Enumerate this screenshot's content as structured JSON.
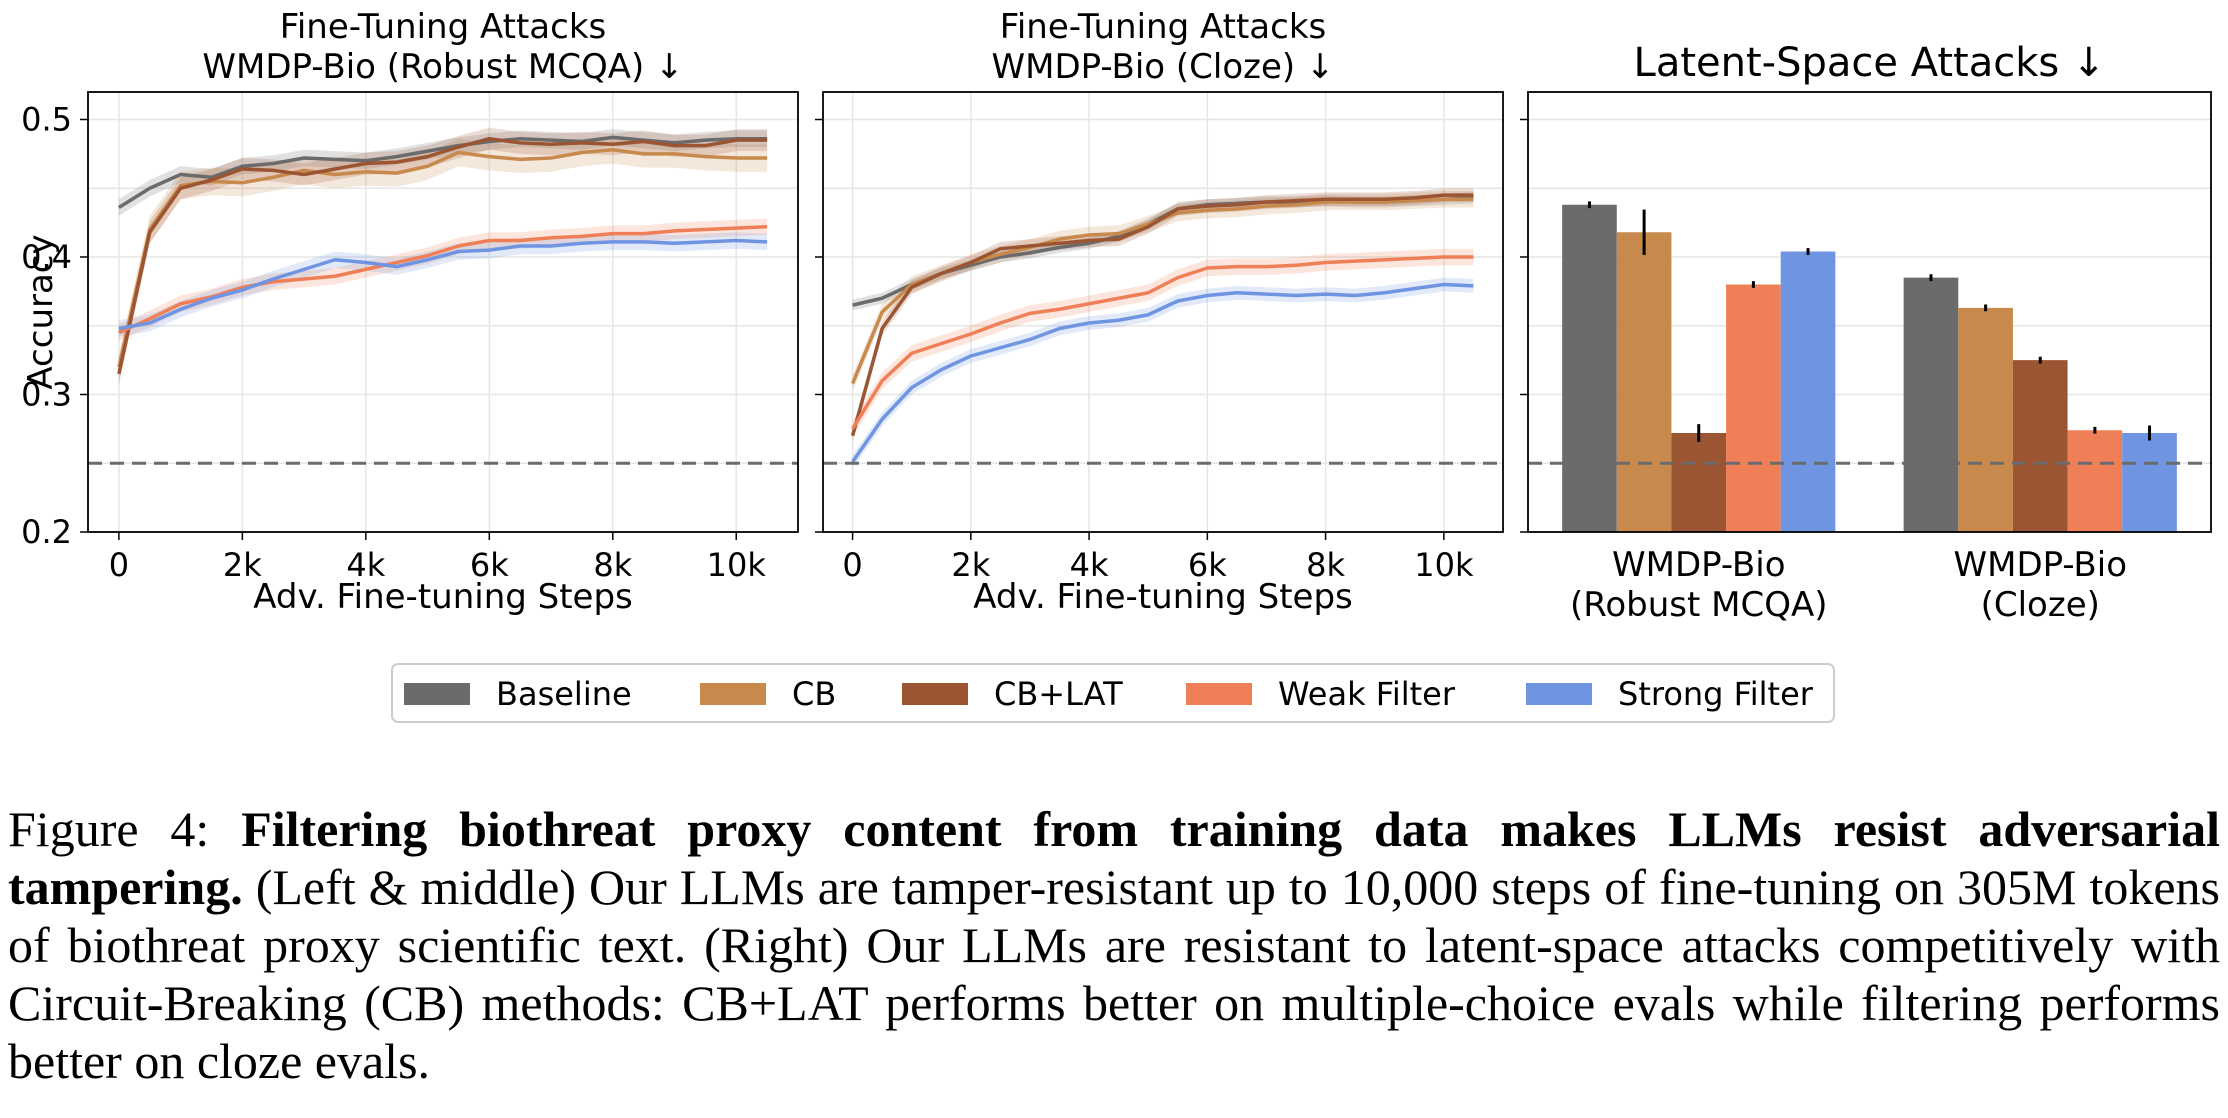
{
  "chart_data": [
    {
      "type": "line",
      "title_line1": "Fine-Tuning Attacks",
      "title_line2": "WMDP-Bio (Robust MCQA)  ↓",
      "xlabel": "Adv. Fine-tuning Steps",
      "ylabel": "Accuracy",
      "xlim": [
        -500,
        11000
      ],
      "ylim": [
        0.2,
        0.52
      ],
      "xticks": [
        0,
        2000,
        4000,
        6000,
        8000,
        10000
      ],
      "xtick_labels": [
        "0",
        "2k",
        "4k",
        "6k",
        "8k",
        "10k"
      ],
      "yticks": [
        0.2,
        0.3,
        0.4,
        0.5
      ],
      "ytick_labels": [
        "0.2",
        "0.3",
        "0.4",
        "0.5"
      ],
      "grid": true,
      "reference_line": 0.25,
      "x": [
        0,
        500,
        1000,
        1500,
        2000,
        2500,
        3000,
        3500,
        4000,
        4500,
        5000,
        5500,
        6000,
        6500,
        7000,
        7500,
        8000,
        8500,
        9000,
        9500,
        10000,
        10500
      ],
      "series": [
        {
          "name": "Baseline",
          "color": "#6b6b6b",
          "values": [
            0.436,
            0.45,
            0.46,
            0.458,
            0.466,
            0.468,
            0.472,
            0.471,
            0.47,
            0.473,
            0.477,
            0.481,
            0.484,
            0.486,
            0.485,
            0.484,
            0.487,
            0.485,
            0.483,
            0.485,
            0.486,
            0.486
          ],
          "band": 0.006
        },
        {
          "name": "CB",
          "color": "#c8894d",
          "values": [
            0.32,
            0.42,
            0.452,
            0.455,
            0.454,
            0.458,
            0.463,
            0.46,
            0.462,
            0.461,
            0.466,
            0.476,
            0.473,
            0.471,
            0.472,
            0.476,
            0.478,
            0.475,
            0.475,
            0.473,
            0.472,
            0.472
          ],
          "band": 0.01
        },
        {
          "name": "CB+LAT",
          "color": "#9c5533",
          "values": [
            0.315,
            0.418,
            0.45,
            0.456,
            0.464,
            0.463,
            0.46,
            0.464,
            0.468,
            0.469,
            0.473,
            0.48,
            0.486,
            0.483,
            0.482,
            0.483,
            0.482,
            0.484,
            0.481,
            0.481,
            0.485,
            0.485
          ],
          "band": 0.008
        },
        {
          "name": "Weak Filter",
          "color": "#ef7f57",
          "values": [
            0.345,
            0.355,
            0.366,
            0.371,
            0.378,
            0.382,
            0.384,
            0.386,
            0.391,
            0.396,
            0.401,
            0.408,
            0.412,
            0.412,
            0.414,
            0.415,
            0.417,
            0.417,
            0.419,
            0.42,
            0.421,
            0.422
          ],
          "band": 0.006
        },
        {
          "name": "Strong Filter",
          "color": "#6f95e2",
          "values": [
            0.348,
            0.352,
            0.362,
            0.37,
            0.376,
            0.384,
            0.391,
            0.398,
            0.396,
            0.393,
            0.398,
            0.404,
            0.405,
            0.408,
            0.408,
            0.41,
            0.411,
            0.411,
            0.41,
            0.411,
            0.412,
            0.411
          ],
          "band": 0.006
        }
      ]
    },
    {
      "type": "line",
      "title_line1": "Fine-Tuning Attacks",
      "title_line2": "WMDP-Bio (Cloze)  ↓",
      "xlabel": "Adv. Fine-tuning Steps",
      "ylabel": "",
      "xlim": [
        -500,
        11000
      ],
      "ylim": [
        0.2,
        0.52
      ],
      "xticks": [
        0,
        2000,
        4000,
        6000,
        8000,
        10000
      ],
      "xtick_labels": [
        "0",
        "2k",
        "4k",
        "6k",
        "8k",
        "10k"
      ],
      "grid": true,
      "reference_line": 0.25,
      "x": [
        0,
        500,
        1000,
        1500,
        2000,
        2500,
        3000,
        3500,
        4000,
        4500,
        5000,
        5500,
        6000,
        6500,
        7000,
        7500,
        8000,
        8500,
        9000,
        9500,
        10000,
        10500
      ],
      "series": [
        {
          "name": "Baseline",
          "color": "#6b6b6b",
          "values": [
            0.365,
            0.37,
            0.38,
            0.388,
            0.394,
            0.4,
            0.403,
            0.407,
            0.41,
            0.415,
            0.424,
            0.435,
            0.438,
            0.439,
            0.44,
            0.44,
            0.441,
            0.44,
            0.44,
            0.441,
            0.442,
            0.443
          ],
          "band": 0.004
        },
        {
          "name": "CB",
          "color": "#c8894d",
          "values": [
            0.308,
            0.36,
            0.38,
            0.388,
            0.396,
            0.402,
            0.407,
            0.413,
            0.416,
            0.417,
            0.424,
            0.432,
            0.434,
            0.435,
            0.437,
            0.438,
            0.44,
            0.44,
            0.44,
            0.441,
            0.442,
            0.442
          ],
          "band": 0.006
        },
        {
          "name": "CB+LAT",
          "color": "#9c5533",
          "values": [
            0.27,
            0.348,
            0.378,
            0.388,
            0.396,
            0.406,
            0.408,
            0.41,
            0.412,
            0.413,
            0.422,
            0.435,
            0.437,
            0.438,
            0.44,
            0.441,
            0.442,
            0.442,
            0.442,
            0.443,
            0.445,
            0.445
          ],
          "band": 0.005
        },
        {
          "name": "Weak Filter",
          "color": "#ef7f57",
          "values": [
            0.275,
            0.31,
            0.33,
            0.337,
            0.344,
            0.352,
            0.359,
            0.362,
            0.366,
            0.37,
            0.374,
            0.385,
            0.392,
            0.393,
            0.393,
            0.394,
            0.396,
            0.397,
            0.398,
            0.399,
            0.4,
            0.4
          ],
          "band": 0.006
        },
        {
          "name": "Strong Filter",
          "color": "#6f95e2",
          "values": [
            0.251,
            0.282,
            0.305,
            0.318,
            0.328,
            0.334,
            0.34,
            0.348,
            0.352,
            0.354,
            0.358,
            0.368,
            0.372,
            0.374,
            0.373,
            0.372,
            0.373,
            0.372,
            0.374,
            0.377,
            0.38,
            0.379
          ],
          "band": 0.005
        }
      ]
    },
    {
      "type": "bar",
      "title": "Latent-Space Attacks  ↓",
      "categories": [
        "WMDP-Bio\n(Robust MCQA)",
        "WMDP-Bio\n(Cloze)"
      ],
      "category_lines": [
        [
          "WMDP-Bio",
          "(Robust MCQA)"
        ],
        [
          "WMDP-Bio",
          "(Cloze)"
        ]
      ],
      "ylim": [
        0.2,
        0.52
      ],
      "reference_line": 0.25,
      "grid": true,
      "series": [
        {
          "name": "Baseline",
          "color": "#6b6b6b",
          "values": [
            0.438,
            0.385
          ],
          "errors": [
            0.001,
            0.001
          ]
        },
        {
          "name": "CB",
          "color": "#c8894d",
          "values": [
            0.418,
            0.363
          ],
          "errors": [
            0.015,
            0.001
          ]
        },
        {
          "name": "CB+LAT",
          "color": "#9c5533",
          "values": [
            0.272,
            0.325
          ],
          "errors": [
            0.005,
            0.001
          ]
        },
        {
          "name": "Weak Filter",
          "color": "#ef7f57",
          "values": [
            0.38,
            0.274
          ],
          "errors": [
            0.001,
            0.001
          ]
        },
        {
          "name": "Strong Filter",
          "color": "#6f95e2",
          "values": [
            0.404,
            0.272
          ],
          "errors": [
            0.001,
            0.004
          ]
        }
      ]
    }
  ],
  "legend": {
    "placement": "bottom-center",
    "entries": [
      {
        "name": "Baseline",
        "color": "#6b6b6b"
      },
      {
        "name": "CB",
        "color": "#c8894d"
      },
      {
        "name": "CB+LAT",
        "color": "#9c5533"
      },
      {
        "name": "Weak Filter",
        "color": "#ef7f57"
      },
      {
        "name": "Strong Filter",
        "color": "#6f95e2"
      }
    ]
  },
  "caption": {
    "figure_label": "Figure 4:",
    "bold_text": "Filtering biothreat proxy content from training data makes LLMs resist adversarial tampering.",
    "body_text": "(Left & middle) Our LLMs are tamper-resistant up to 10,000 steps of fine-tuning on 305M tokens of biothreat proxy scientific text. (Right) Our LLMs are resistant to latent-space attacks competitively with Circuit-Breaking (CB) methods: CB+LAT performs better on multiple-choice evals while filtering performs better on cloze evals."
  }
}
